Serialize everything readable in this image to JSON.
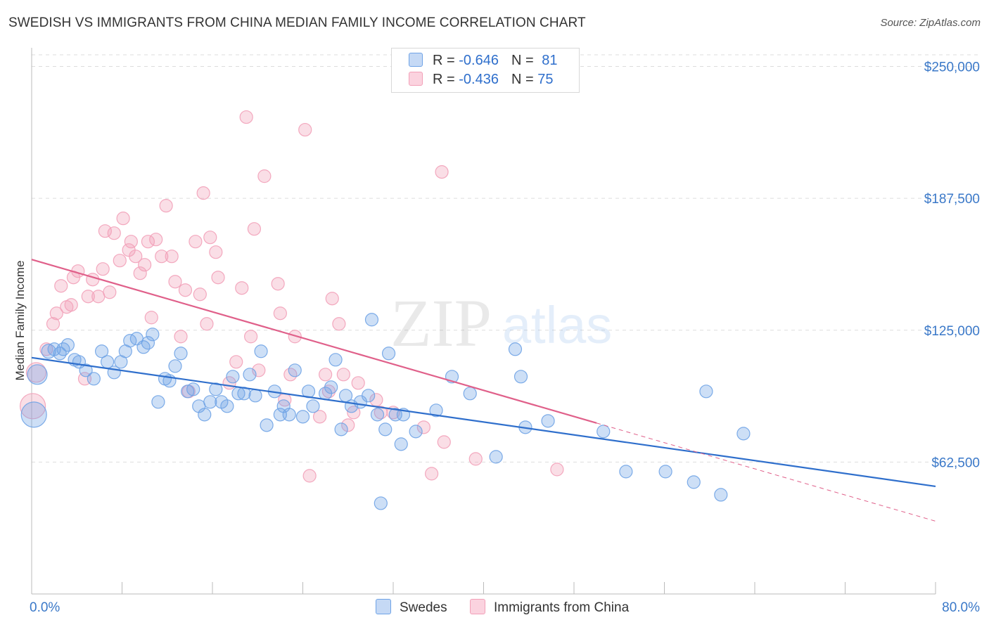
{
  "title": "SWEDISH VS IMMIGRANTS FROM CHINA MEDIAN FAMILY INCOME CORRELATION CHART",
  "source": "Source: ZipAtlas.com",
  "watermark": {
    "zip": "ZIP",
    "atlas": "atlas"
  },
  "legend": {
    "rows": [
      {
        "r_label": "R = ",
        "r_value": "-0.646",
        "n_label": "N = ",
        "n_value": "81"
      },
      {
        "r_label": "R = ",
        "r_value": "-0.436",
        "n_label": "N = ",
        "n_value": "75"
      }
    ]
  },
  "chart_data": {
    "type": "scatter",
    "title": "SWEDISH VS IMMIGRANTS FROM CHINA MEDIAN FAMILY INCOME CORRELATION CHART",
    "xlabel": "",
    "ylabel": "Median Family Income",
    "xlim": [
      0,
      80
    ],
    "ylim": [
      0,
      262500
    ],
    "x_tick_labels": [
      "0.0%",
      "80.0%"
    ],
    "y_ticks": [
      62500,
      125000,
      187500,
      250000
    ],
    "y_tick_labels": [
      "$62,500",
      "$125,000",
      "$187,500",
      "$250,000"
    ],
    "grid": true,
    "colors": {
      "swedes": "#6fa3e6",
      "china": "#f2a0b8",
      "swedes_line": "#2f6fcc",
      "china_line": "#e0608a"
    },
    "series": [
      {
        "name": "Swedes",
        "r": -0.646,
        "n": 81,
        "trend": {
          "x0": 0,
          "y0": 112000,
          "x1": 80,
          "y1": 51000
        },
        "points": [
          [
            0.2,
            85000,
            18
          ],
          [
            0.5,
            104000,
            14
          ],
          [
            1.5,
            115000,
            10
          ],
          [
            2.0,
            116000,
            9
          ],
          [
            2.5,
            114000,
            9
          ],
          [
            3.2,
            118000,
            9
          ],
          [
            3.8,
            111000,
            9
          ],
          [
            4.2,
            110000,
            9
          ],
          [
            4.8,
            106000,
            9
          ],
          [
            5.5,
            102000,
            9
          ],
          [
            6.2,
            115000,
            9
          ],
          [
            6.7,
            110000,
            9
          ],
          [
            7.3,
            105000,
            9
          ],
          [
            7.9,
            110000,
            9
          ],
          [
            8.3,
            115000,
            9
          ],
          [
            8.7,
            120000,
            9
          ],
          [
            9.3,
            121000,
            9
          ],
          [
            9.9,
            117000,
            9
          ],
          [
            10.3,
            119000,
            9
          ],
          [
            10.7,
            123000,
            9
          ],
          [
            11.2,
            91000,
            9
          ],
          [
            11.8,
            102000,
            9
          ],
          [
            12.2,
            101000,
            9
          ],
          [
            12.7,
            108000,
            9
          ],
          [
            13.2,
            114000,
            9
          ],
          [
            13.8,
            96000,
            9
          ],
          [
            14.3,
            97000,
            9
          ],
          [
            14.8,
            89000,
            9
          ],
          [
            15.3,
            85000,
            9
          ],
          [
            15.8,
            91000,
            9
          ],
          [
            16.3,
            97000,
            9
          ],
          [
            16.8,
            91000,
            9
          ],
          [
            17.3,
            89000,
            9
          ],
          [
            17.8,
            103000,
            9
          ],
          [
            18.3,
            95000,
            9
          ],
          [
            18.8,
            95000,
            9
          ],
          [
            19.3,
            104000,
            9
          ],
          [
            19.8,
            94000,
            9
          ],
          [
            20.3,
            115000,
            9
          ],
          [
            20.8,
            80000,
            9
          ],
          [
            21.5,
            96000,
            9
          ],
          [
            22.0,
            85000,
            9
          ],
          [
            22.3,
            89000,
            9
          ],
          [
            22.8,
            85000,
            9
          ],
          [
            23.3,
            106000,
            9
          ],
          [
            24.0,
            84000,
            9
          ],
          [
            24.5,
            96000,
            9
          ],
          [
            24.9,
            89000,
            9
          ],
          [
            26.0,
            95000,
            9
          ],
          [
            26.5,
            98000,
            9
          ],
          [
            26.9,
            111000,
            9
          ],
          [
            27.4,
            78000,
            9
          ],
          [
            27.8,
            94000,
            9
          ],
          [
            28.3,
            89000,
            9
          ],
          [
            29.1,
            91000,
            9
          ],
          [
            29.8,
            94000,
            9
          ],
          [
            30.1,
            130000,
            9
          ],
          [
            30.6,
            85000,
            9
          ],
          [
            30.9,
            43000,
            9
          ],
          [
            31.3,
            78000,
            9
          ],
          [
            31.6,
            114000,
            9
          ],
          [
            32.2,
            85000,
            9
          ],
          [
            32.7,
            71000,
            9
          ],
          [
            32.9,
            85000,
            9
          ],
          [
            34.0,
            77000,
            9
          ],
          [
            35.8,
            87000,
            9
          ],
          [
            37.2,
            103000,
            9
          ],
          [
            38.8,
            95000,
            9
          ],
          [
            41.1,
            65000,
            9
          ],
          [
            42.8,
            116000,
            9
          ],
          [
            43.3,
            103000,
            9
          ],
          [
            43.7,
            79000,
            9
          ],
          [
            45.7,
            82000,
            9
          ],
          [
            50.6,
            77000,
            9
          ],
          [
            52.6,
            58000,
            9
          ],
          [
            56.1,
            58000,
            9
          ],
          [
            58.6,
            53000,
            9
          ],
          [
            59.7,
            96000,
            9
          ],
          [
            61.0,
            47000,
            9
          ],
          [
            63.0,
            76000,
            9
          ],
          [
            2.8,
            116000,
            9
          ]
        ]
      },
      {
        "name": "Immigrants from China",
        "r": -0.436,
        "n": 75,
        "trend": {
          "x0": 0,
          "y0": 158500,
          "x1": 50,
          "y1": 81000,
          "dash_to_x": 80,
          "dash_to_y": 34500
        },
        "points": [
          [
            0.1,
            89000,
            18
          ],
          [
            0.4,
            105000,
            14
          ],
          [
            1.3,
            116000,
            9
          ],
          [
            1.9,
            128000,
            9
          ],
          [
            2.2,
            133000,
            9
          ],
          [
            2.6,
            146000,
            9
          ],
          [
            3.1,
            136000,
            9
          ],
          [
            3.5,
            137000,
            9
          ],
          [
            3.7,
            150000,
            9
          ],
          [
            4.1,
            153000,
            9
          ],
          [
            4.7,
            102000,
            9
          ],
          [
            5.0,
            141000,
            9
          ],
          [
            5.4,
            149000,
            9
          ],
          [
            5.9,
            141000,
            9
          ],
          [
            6.3,
            154000,
            9
          ],
          [
            6.5,
            172000,
            9
          ],
          [
            6.9,
            143000,
            9
          ],
          [
            7.3,
            171000,
            9
          ],
          [
            7.8,
            158000,
            9
          ],
          [
            8.1,
            178000,
            9
          ],
          [
            8.6,
            163000,
            9
          ],
          [
            8.8,
            167000,
            9
          ],
          [
            9.2,
            160000,
            9
          ],
          [
            9.6,
            152000,
            9
          ],
          [
            10.0,
            156000,
            9
          ],
          [
            10.3,
            167000,
            9
          ],
          [
            10.6,
            131000,
            9
          ],
          [
            11.0,
            168000,
            9
          ],
          [
            11.5,
            160000,
            9
          ],
          [
            11.9,
            184000,
            9
          ],
          [
            12.4,
            160000,
            9
          ],
          [
            12.7,
            148000,
            9
          ],
          [
            13.2,
            122000,
            9
          ],
          [
            13.6,
            144000,
            9
          ],
          [
            13.9,
            96000,
            9
          ],
          [
            14.5,
            167000,
            9
          ],
          [
            14.9,
            142000,
            9
          ],
          [
            15.2,
            190000,
            9
          ],
          [
            15.5,
            128000,
            9
          ],
          [
            15.8,
            169000,
            9
          ],
          [
            16.3,
            162000,
            9
          ],
          [
            16.5,
            150000,
            9
          ],
          [
            17.5,
            100000,
            9
          ],
          [
            18.1,
            110000,
            9
          ],
          [
            18.6,
            145000,
            9
          ],
          [
            19.0,
            226000,
            9
          ],
          [
            19.4,
            122000,
            9
          ],
          [
            19.7,
            173000,
            9
          ],
          [
            20.1,
            106000,
            9
          ],
          [
            20.6,
            198000,
            9
          ],
          [
            21.8,
            147000,
            9
          ],
          [
            22.0,
            133000,
            9
          ],
          [
            22.4,
            92000,
            9
          ],
          [
            22.9,
            104000,
            9
          ],
          [
            23.3,
            122000,
            9
          ],
          [
            24.2,
            220000,
            9
          ],
          [
            24.6,
            56000,
            9
          ],
          [
            25.5,
            84000,
            9
          ],
          [
            26.0,
            104000,
            9
          ],
          [
            26.3,
            96000,
            9
          ],
          [
            26.6,
            140000,
            9
          ],
          [
            27.2,
            128000,
            9
          ],
          [
            27.6,
            104000,
            9
          ],
          [
            28.0,
            80000,
            9
          ],
          [
            28.5,
            86000,
            9
          ],
          [
            28.9,
            100000,
            9
          ],
          [
            30.5,
            92000,
            9
          ],
          [
            30.9,
            86000,
            9
          ],
          [
            32.0,
            86000,
            9
          ],
          [
            34.7,
            79000,
            9
          ],
          [
            35.4,
            57000,
            9
          ],
          [
            36.3,
            200000,
            9
          ],
          [
            36.5,
            72000,
            9
          ],
          [
            39.3,
            64000,
            9
          ],
          [
            46.5,
            59000,
            9
          ]
        ]
      }
    ]
  },
  "bottom_legend": [
    {
      "label": "Swedes"
    },
    {
      "label": "Immigrants from China"
    }
  ]
}
